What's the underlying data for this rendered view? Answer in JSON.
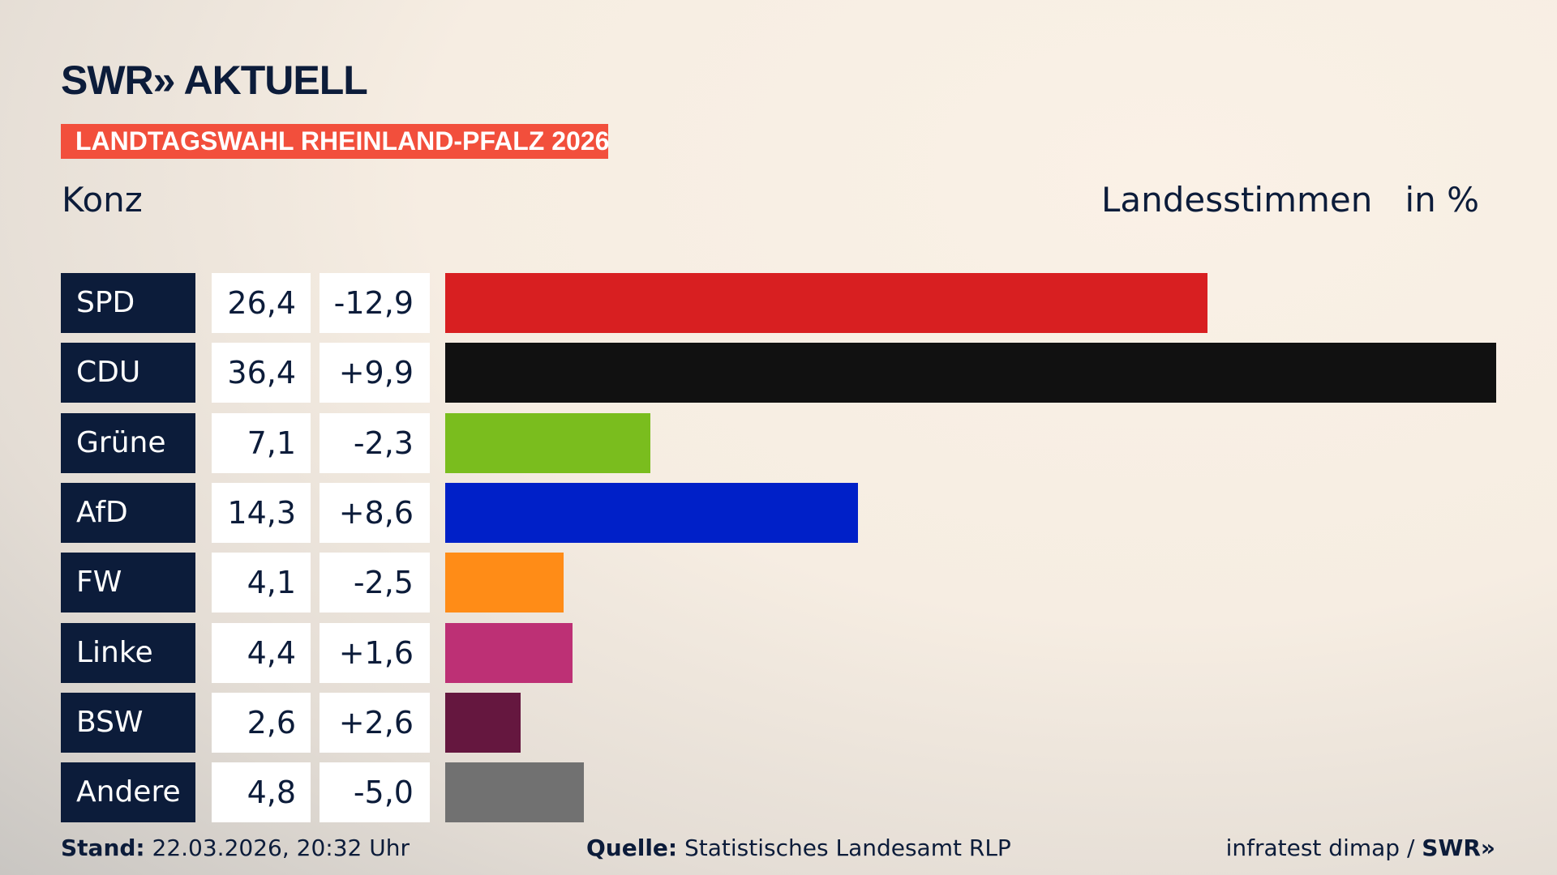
{
  "header": {
    "logo": "SWR» AKTUELL",
    "banner": "LANDTAGSWAHL RHEINLAND-PFALZ 2026",
    "place": "Konz",
    "measure": "Landesstimmen",
    "unit": "in %"
  },
  "chart_data": {
    "type": "bar",
    "orientation": "horizontal",
    "categories": [
      "SPD",
      "CDU",
      "Grüne",
      "AfD",
      "FW",
      "Linke",
      "BSW",
      "Andere"
    ],
    "values": [
      26.4,
      36.4,
      7.1,
      14.3,
      4.1,
      4.4,
      2.6,
      4.8
    ],
    "values_label": [
      "26,4",
      "36,4",
      "7,1",
      "14,3",
      "4,1",
      "4,4",
      "2,6",
      "4,8"
    ],
    "changes": [
      "-12,9",
      "+9,9",
      "-2,3",
      "+8,6",
      "-2,5",
      "+1,6",
      "+2,6",
      "-5,0"
    ],
    "colors": [
      "#d81f21",
      "#111111",
      "#7abd1e",
      "#0020c8",
      "#ff8c17",
      "#bd3075",
      "#65173f",
      "#717171"
    ],
    "grid": false
  },
  "footer": {
    "stand_label": "Stand:",
    "stand_value": " 22.03.2026, 20:32 Uhr",
    "source_label": "Quelle:",
    "source_value": " Statistisches Landesamt RLP",
    "credit": "infratest dimap / ",
    "credit_logo": "SWR»"
  }
}
